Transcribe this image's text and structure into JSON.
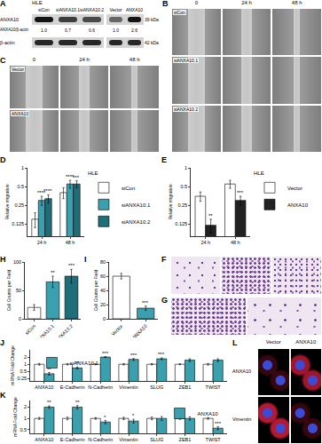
{
  "panels": [
    {
      "letter": "A",
      "blots": [
        {
          "cell_line": "HLE",
          "lanes": [
            "siCon",
            "siANXA10.1",
            "siANXA10.2"
          ],
          "ratios": [
            "1.0",
            "0.7",
            "0.6"
          ]
        },
        {
          "lanes": [
            "Vector",
            "ANXA10"
          ],
          "ratios": [
            "1.0",
            "2.6"
          ]
        }
      ],
      "rows": [
        "ANXA10",
        "β-actin"
      ],
      "ratio_label": "ANXA10/β-actin",
      "sizes": [
        "39 kDa",
        "42 kDa"
      ]
    },
    {
      "letter": "B",
      "columns": [
        "0",
        "24 h",
        "48 h"
      ],
      "rows": [
        "siCon",
        "siANXA10.1",
        "siANXA10.2"
      ]
    },
    {
      "letter": "C",
      "columns": [
        "0",
        "24 h",
        "48 h"
      ],
      "rows": [
        "Vector",
        "ANXA10"
      ]
    },
    {
      "letter": "F"
    },
    {
      "letter": "G"
    },
    {
      "letter": "L",
      "columns": [
        "Vector",
        "ANXA10"
      ],
      "rows": [
        "ANXA10",
        "Vimentin"
      ]
    }
  ],
  "chart_data": [
    {
      "panel": "D",
      "type": "bar",
      "title": "HLE",
      "categories": [
        "24 h",
        "48 h"
      ],
      "y_label": "Relative migration",
      "log": "y",
      "ylim": [
        0.08,
        1
      ],
      "yticks": [
        0.125,
        0.25,
        0.5,
        1
      ],
      "grid": false,
      "legend": "right",
      "series": [
        {
          "name": "siCon",
          "color": "#ffffff",
          "values": [
            0.15,
            0.4
          ],
          "errors": [
            0.04,
            0.08
          ]
        },
        {
          "name": "siANXA10.1",
          "color": "#3aa0ad",
          "values": [
            0.3,
            0.55
          ],
          "errors": [
            0.05,
            0.08
          ],
          "stars": [
            "****",
            "****"
          ]
        },
        {
          "name": "siANXA10.2",
          "color": "#1e6e7a",
          "values": [
            0.32,
            0.55
          ],
          "errors": [
            0.05,
            0.07
          ],
          "stars": [
            "****",
            "***"
          ]
        }
      ]
    },
    {
      "panel": "E",
      "type": "bar",
      "title": "HLE",
      "categories": [
        "24 h",
        "48 h"
      ],
      "y_label": "Relative migration",
      "log": "y",
      "ylim": [
        0.08,
        1
      ],
      "yticks": [
        0.125,
        0.25,
        0.5,
        1
      ],
      "grid": false,
      "legend": "right",
      "series": [
        {
          "name": "Vector",
          "color": "#ffffff",
          "values": [
            0.35,
            0.55
          ],
          "errors": [
            0.06,
            0.08
          ]
        },
        {
          "name": "ANXA10",
          "color": "#222222",
          "values": [
            0.12,
            0.3
          ],
          "errors": [
            0.03,
            0.05
          ],
          "stars": [
            "**",
            "***"
          ]
        }
      ]
    },
    {
      "panel": "H",
      "type": "bar",
      "categories": [
        "siCon",
        "siANXA10.1",
        "siANXA10.2"
      ],
      "y_label": "Cell Counts per Field",
      "values": [
        20,
        65,
        75
      ],
      "errors": [
        5,
        10,
        12
      ],
      "stars": [
        null,
        "**",
        "***"
      ],
      "colors": [
        "#ffffff",
        "#3aa0ad",
        "#1e6e7a"
      ],
      "ylim": [
        0,
        100
      ],
      "yticks": [
        0,
        50,
        100
      ],
      "grid": false
    },
    {
      "panel": "I",
      "type": "bar",
      "categories": [
        "Vector",
        "ANXA10"
      ],
      "y_label": "Cell Counts per Field",
      "values": [
        60,
        15
      ],
      "errors": [
        4,
        3
      ],
      "stars": [
        null,
        "***"
      ],
      "colors": [
        "#ffffff",
        "#3aa0ad"
      ],
      "ylim": [
        0,
        80
      ],
      "yticks": [
        0,
        20,
        40,
        60,
        80
      ],
      "grid": false
    },
    {
      "panel": "J",
      "type": "bar",
      "categories": [
        "ANXA10",
        "E-Cadherin",
        "N-Cadherin",
        "Vimentin",
        "SLUG",
        "ZEB1",
        "TWIST"
      ],
      "y_label": "mRNA Fold Change",
      "log": "y",
      "ylim": [
        0.2,
        4
      ],
      "yticks": [
        0.25,
        0.5,
        1,
        2
      ],
      "grid": false,
      "legend": "top left",
      "series": [
        {
          "color": "#ffffff",
          "values": [
            1,
            1,
            1,
            1,
            1,
            1,
            1
          ],
          "errors": [
            0.08,
            0.06,
            0.05,
            0.07,
            0.06,
            0.05,
            0.08
          ]
        },
        {
          "name": "siANXA10.1",
          "color": "#3aa0ad",
          "values": [
            0.4,
            0.7,
            2.0,
            1.6,
            1.7,
            1.5,
            1.5
          ],
          "errors": [
            0.05,
            0.07,
            0.1,
            0.15,
            0.15,
            0.2,
            0.2
          ],
          "stars": [
            "**",
            "**",
            "***",
            "***",
            "***",
            null,
            null
          ]
        }
      ]
    },
    {
      "panel": "K",
      "type": "bar",
      "categories": [
        "ANXA10",
        "E-Cadherin",
        "N-Cadherin",
        "Vimentin",
        "SLUG",
        "ZEB1",
        "TWIST"
      ],
      "y_label": "mRNA Fold Change",
      "log": "y",
      "ylim": [
        0.4,
        3
      ],
      "yticks": [
        0.5,
        1,
        2
      ],
      "grid": false,
      "legend": "top right",
      "series": [
        {
          "color": "#ffffff",
          "values": [
            1,
            1,
            1,
            1,
            1,
            1,
            1
          ],
          "errors": [
            0.06,
            0.08,
            0.05,
            0.07,
            0.08,
            0.06,
            0.05
          ]
        },
        {
          "name": "ANXA10",
          "color": "#3aa0ad",
          "values": [
            2.0,
            2.0,
            0.8,
            0.85,
            1.0,
            1.0,
            0.55
          ],
          "errors": [
            0.15,
            0.2,
            0.08,
            0.1,
            0.12,
            0.1,
            0.05
          ],
          "stars": [
            "**",
            "**",
            "*",
            "*",
            null,
            null,
            "***"
          ]
        }
      ]
    }
  ]
}
